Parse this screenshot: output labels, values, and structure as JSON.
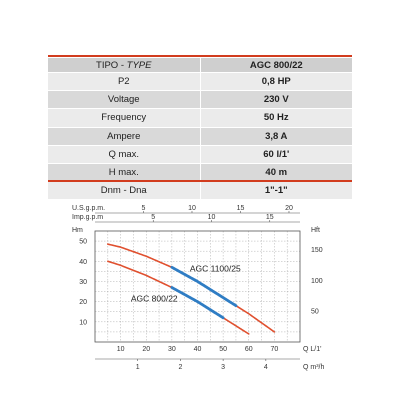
{
  "table": {
    "header": {
      "label_main": "TIPO - ",
      "label_italic": "TYPE",
      "model": "AGC 800/22"
    },
    "rows": [
      {
        "label": "P2",
        "value": "0,8 HP"
      },
      {
        "label": "Voltage",
        "value": "230 V"
      },
      {
        "label": "Frequency",
        "value": "50 Hz"
      },
      {
        "label": "Ampere",
        "value": "3,8 A"
      },
      {
        "label": "Q max.",
        "value": "60 l/1'"
      },
      {
        "label": "H max.",
        "value": "40 m"
      },
      {
        "label": "Dnm - Dna",
        "value": "1\"-1\""
      }
    ]
  },
  "colors": {
    "accent": "#d23c1e",
    "series_red": "#e0502f",
    "series_blue": "#2f7dc4",
    "grid": "#9a9a9a"
  },
  "chart_data": {
    "type": "line",
    "x_axis": {
      "label": "Q L/1'",
      "range": [
        0,
        80
      ],
      "ticks": [
        10,
        20,
        30,
        40,
        50,
        60,
        70
      ]
    },
    "x_axis_m3h": {
      "label": "Q m³/h",
      "ticks": [
        1,
        2,
        3,
        4
      ]
    },
    "top_axis_us": {
      "label": "U.S.g.p.m.",
      "ticks": [
        5,
        10,
        15,
        20
      ]
    },
    "top_axis_imp": {
      "label": "Imp.g.p.m",
      "ticks": [
        5,
        10,
        15
      ]
    },
    "y_axis": {
      "label": "Hm",
      "range": [
        0,
        55
      ],
      "ticks": [
        10,
        20,
        30,
        40,
        50
      ]
    },
    "y_axis_right": {
      "label": "Hft",
      "ticks": [
        50,
        100,
        150
      ]
    },
    "grid": true,
    "series": [
      {
        "name": "AGC 1100/25",
        "x": [
          5,
          10,
          20,
          30,
          40,
          50,
          60,
          70
        ],
        "y": [
          48.5,
          47,
          42.5,
          37,
          30,
          22,
          14,
          5
        ],
        "best_efficiency_range": [
          30,
          55
        ]
      },
      {
        "name": "AGC 800/22",
        "x": [
          5,
          10,
          20,
          30,
          40,
          50,
          60
        ],
        "y": [
          40,
          38,
          33,
          27,
          20,
          12,
          4
        ],
        "best_efficiency_range": [
          30,
          50
        ]
      }
    ]
  }
}
